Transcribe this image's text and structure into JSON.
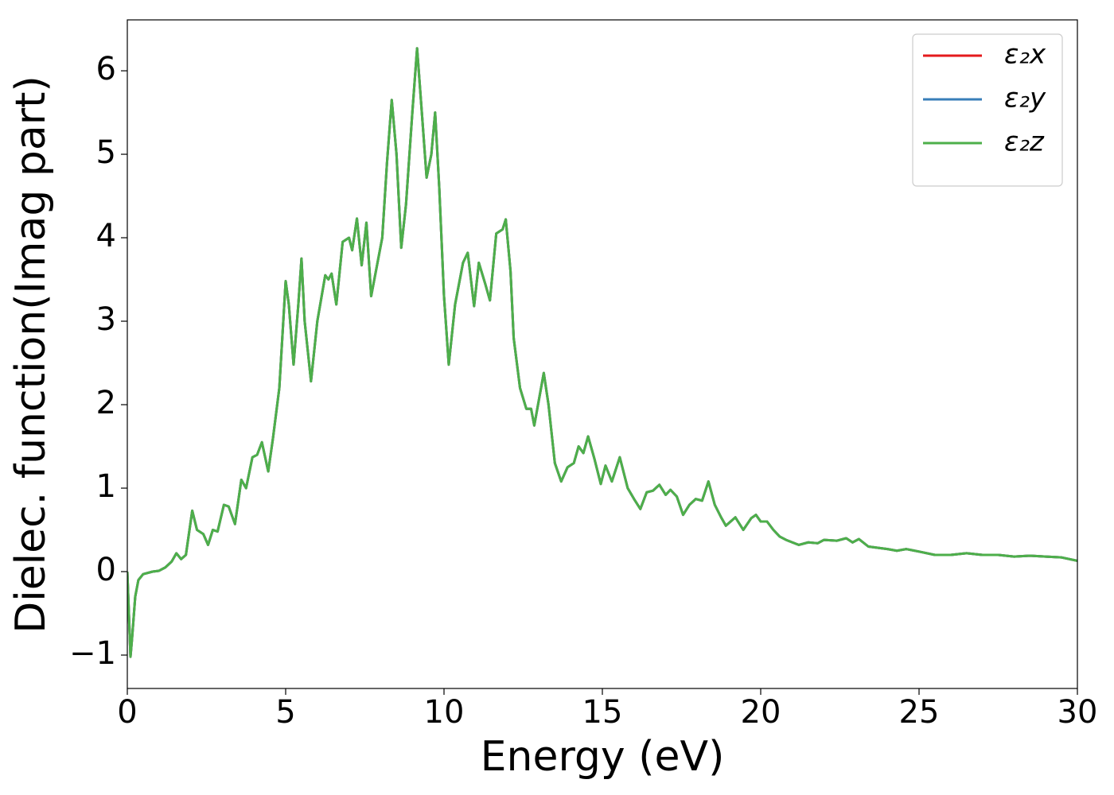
{
  "chart_data": {
    "type": "line",
    "xlabel": "Energy (eV)",
    "ylabel": "Dielec. function(Imag part)",
    "xlim": [
      0,
      30
    ],
    "ylim": [
      -1.4,
      6.61
    ],
    "xticks": [
      0,
      5,
      10,
      15,
      20,
      25,
      30
    ],
    "yticks": [
      {
        "value": -1,
        "label": "−1"
      },
      0,
      1,
      2,
      3,
      4,
      5,
      6
    ],
    "legend": "upper right",
    "x": [
      0,
      0.05,
      0.1,
      0.15,
      0.25,
      0.35,
      0.5,
      0.8,
      1.0,
      1.2,
      1.4,
      1.55,
      1.7,
      1.85,
      2.05,
      2.2,
      2.4,
      2.55,
      2.7,
      2.85,
      3.05,
      3.2,
      3.4,
      3.6,
      3.75,
      3.95,
      4.1,
      4.25,
      4.45,
      4.6,
      4.8,
      5.0,
      5.1,
      5.25,
      5.4,
      5.5,
      5.6,
      5.8,
      6.0,
      6.25,
      6.35,
      6.45,
      6.6,
      6.8,
      7.0,
      7.1,
      7.25,
      7.4,
      7.55,
      7.7,
      7.9,
      8.05,
      8.2,
      8.35,
      8.5,
      8.65,
      8.8,
      9.0,
      9.15,
      9.3,
      9.45,
      9.6,
      9.72,
      9.85,
      10.0,
      10.15,
      10.35,
      10.6,
      10.75,
      10.95,
      11.1,
      11.3,
      11.45,
      11.65,
      11.85,
      11.95,
      12.1,
      12.2,
      12.4,
      12.6,
      12.75,
      12.85,
      13.15,
      13.3,
      13.5,
      13.7,
      13.9,
      14.1,
      14.25,
      14.4,
      14.55,
      14.75,
      14.95,
      15.1,
      15.3,
      15.55,
      15.8,
      16.0,
      16.2,
      16.4,
      16.6,
      16.8,
      17.0,
      17.15,
      17.35,
      17.55,
      17.75,
      17.95,
      18.15,
      18.35,
      18.55,
      18.75,
      18.9,
      19.2,
      19.45,
      19.7,
      19.85,
      20.0,
      20.2,
      20.4,
      20.6,
      20.8,
      21.2,
      21.5,
      21.8,
      22.0,
      22.4,
      22.7,
      22.9,
      23.1,
      23.4,
      24.0,
      24.3,
      24.6,
      25.0,
      25.5,
      26.0,
      26.5,
      27.0,
      27.5,
      28.0,
      28.5,
      29.0,
      29.5,
      30.0
    ],
    "series": [
      {
        "name": "ε₂x",
        "color": "#e41a1c",
        "values": [
          0,
          -0.5,
          -1.02,
          -0.8,
          -0.3,
          -0.1,
          -0.03,
          0.0,
          0.01,
          0.05,
          0.12,
          0.22,
          0.15,
          0.2,
          0.73,
          0.5,
          0.45,
          0.32,
          0.5,
          0.48,
          0.8,
          0.78,
          0.57,
          1.1,
          1.0,
          1.37,
          1.4,
          1.55,
          1.2,
          1.6,
          2.2,
          3.48,
          3.2,
          2.48,
          3.2,
          3.75,
          3.0,
          2.28,
          3.0,
          3.55,
          3.5,
          3.57,
          3.2,
          3.95,
          4.0,
          3.85,
          4.23,
          3.67,
          4.18,
          3.3,
          3.7,
          4.0,
          4.9,
          5.65,
          5.0,
          3.88,
          4.4,
          5.5,
          6.27,
          5.5,
          4.72,
          5.0,
          5.5,
          4.6,
          3.3,
          2.48,
          3.2,
          3.7,
          3.82,
          3.18,
          3.7,
          3.45,
          3.25,
          4.05,
          4.1,
          4.22,
          3.6,
          2.8,
          2.2,
          1.95,
          1.95,
          1.75,
          2.38,
          2.0,
          1.3,
          1.08,
          1.25,
          1.3,
          1.5,
          1.42,
          1.62,
          1.35,
          1.05,
          1.27,
          1.08,
          1.37,
          1.0,
          0.87,
          0.75,
          0.95,
          0.97,
          1.04,
          0.92,
          0.98,
          0.9,
          0.68,
          0.8,
          0.87,
          0.85,
          1.08,
          0.8,
          0.65,
          0.55,
          0.65,
          0.5,
          0.64,
          0.68,
          0.6,
          0.6,
          0.5,
          0.42,
          0.38,
          0.32,
          0.35,
          0.34,
          0.38,
          0.37,
          0.4,
          0.35,
          0.39,
          0.3,
          0.27,
          0.25,
          0.27,
          0.24,
          0.2,
          0.2,
          0.22,
          0.2,
          0.2,
          0.18,
          0.19,
          0.18,
          0.17,
          0.13
        ]
      },
      {
        "name": "ε₂y",
        "color": "#377eb8",
        "values": [
          0,
          -0.5,
          -1.02,
          -0.8,
          -0.3,
          -0.1,
          -0.03,
          0.0,
          0.01,
          0.05,
          0.12,
          0.22,
          0.15,
          0.2,
          0.73,
          0.5,
          0.45,
          0.32,
          0.5,
          0.48,
          0.8,
          0.78,
          0.57,
          1.1,
          1.0,
          1.37,
          1.4,
          1.55,
          1.2,
          1.6,
          2.2,
          3.48,
          3.2,
          2.48,
          3.2,
          3.75,
          3.0,
          2.28,
          3.0,
          3.55,
          3.5,
          3.57,
          3.2,
          3.95,
          4.0,
          3.85,
          4.23,
          3.67,
          4.18,
          3.3,
          3.7,
          4.0,
          4.9,
          5.65,
          5.0,
          3.88,
          4.4,
          5.5,
          6.27,
          5.5,
          4.72,
          5.0,
          5.5,
          4.6,
          3.3,
          2.48,
          3.2,
          3.7,
          3.82,
          3.18,
          3.7,
          3.45,
          3.25,
          4.05,
          4.1,
          4.22,
          3.6,
          2.8,
          2.2,
          1.95,
          1.95,
          1.75,
          2.38,
          2.0,
          1.3,
          1.08,
          1.25,
          1.3,
          1.5,
          1.42,
          1.62,
          1.35,
          1.05,
          1.27,
          1.08,
          1.37,
          1.0,
          0.87,
          0.75,
          0.95,
          0.97,
          1.04,
          0.92,
          0.98,
          0.9,
          0.68,
          0.8,
          0.87,
          0.85,
          1.08,
          0.8,
          0.65,
          0.55,
          0.65,
          0.5,
          0.64,
          0.68,
          0.6,
          0.6,
          0.5,
          0.42,
          0.38,
          0.32,
          0.35,
          0.34,
          0.38,
          0.37,
          0.4,
          0.35,
          0.39,
          0.3,
          0.27,
          0.25,
          0.27,
          0.24,
          0.2,
          0.2,
          0.22,
          0.2,
          0.2,
          0.18,
          0.19,
          0.18,
          0.17,
          0.13
        ]
      },
      {
        "name": "ε₂z",
        "color": "#4daf4a",
        "values": [
          0,
          -0.5,
          -1.02,
          -0.8,
          -0.3,
          -0.1,
          -0.03,
          0.0,
          0.01,
          0.05,
          0.12,
          0.22,
          0.15,
          0.2,
          0.73,
          0.5,
          0.45,
          0.32,
          0.5,
          0.48,
          0.8,
          0.78,
          0.57,
          1.1,
          1.0,
          1.37,
          1.4,
          1.55,
          1.2,
          1.6,
          2.2,
          3.48,
          3.2,
          2.48,
          3.2,
          3.75,
          3.0,
          2.28,
          3.0,
          3.55,
          3.5,
          3.57,
          3.2,
          3.95,
          4.0,
          3.85,
          4.23,
          3.67,
          4.18,
          3.3,
          3.7,
          4.0,
          4.9,
          5.65,
          5.0,
          3.88,
          4.4,
          5.5,
          6.27,
          5.5,
          4.72,
          5.0,
          5.5,
          4.6,
          3.3,
          2.48,
          3.2,
          3.7,
          3.82,
          3.18,
          3.7,
          3.45,
          3.25,
          4.05,
          4.1,
          4.22,
          3.6,
          2.8,
          2.2,
          1.95,
          1.95,
          1.75,
          2.38,
          2.0,
          1.3,
          1.08,
          1.25,
          1.3,
          1.5,
          1.42,
          1.62,
          1.35,
          1.05,
          1.27,
          1.08,
          1.37,
          1.0,
          0.87,
          0.75,
          0.95,
          0.97,
          1.04,
          0.92,
          0.98,
          0.9,
          0.68,
          0.8,
          0.87,
          0.85,
          1.08,
          0.8,
          0.65,
          0.55,
          0.65,
          0.5,
          0.64,
          0.68,
          0.6,
          0.6,
          0.5,
          0.42,
          0.38,
          0.32,
          0.35,
          0.34,
          0.38,
          0.37,
          0.4,
          0.35,
          0.39,
          0.3,
          0.27,
          0.25,
          0.27,
          0.24,
          0.2,
          0.2,
          0.22,
          0.2,
          0.2,
          0.18,
          0.19,
          0.18,
          0.17,
          0.13
        ]
      }
    ]
  }
}
